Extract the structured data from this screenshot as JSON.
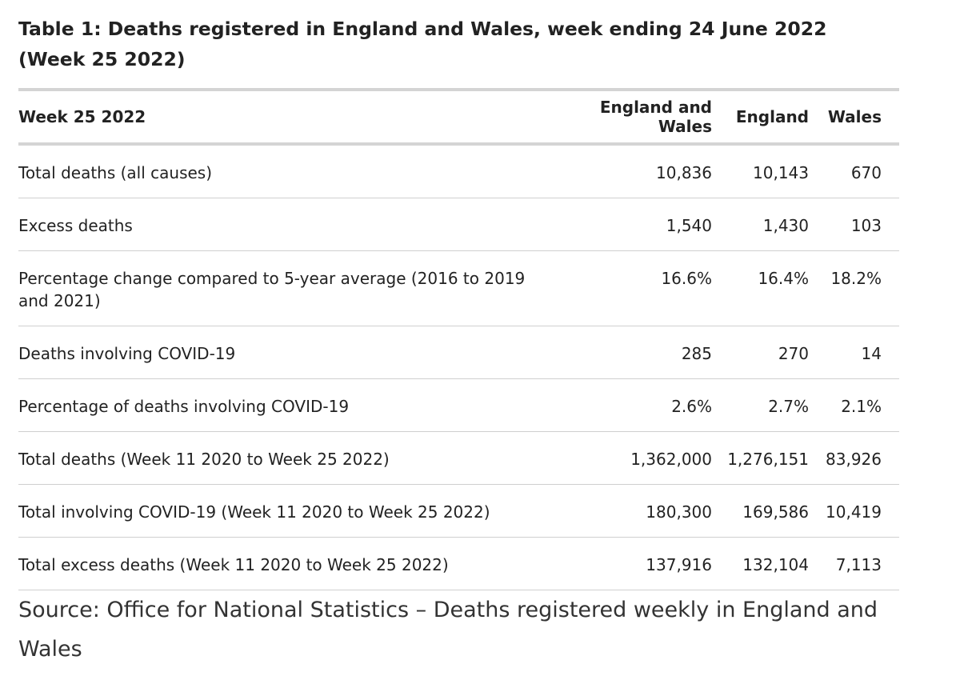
{
  "title": "Table 1: Deaths registered in England and Wales, week ending 24 June 2022 (Week 25 2022)",
  "table": {
    "headers": [
      "Week 25 2022",
      "England and Wales",
      "England",
      "Wales"
    ],
    "rows": [
      {
        "label": "Total deaths (all causes)",
        "england_and_wales": "10,836",
        "england": "10,143",
        "wales": "670"
      },
      {
        "label": "Excess deaths",
        "england_and_wales": "1,540",
        "england": "1,430",
        "wales": "103"
      },
      {
        "label": "Percentage change compared to 5-year average (2016 to 2019 and 2021)",
        "england_and_wales": "16.6%",
        "england": "16.4%",
        "wales": "18.2%"
      },
      {
        "label": "Deaths involving COVID-19",
        "england_and_wales": "285",
        "england": "270",
        "wales": "14"
      },
      {
        "label": "Percentage of deaths involving COVID-19",
        "england_and_wales": "2.6%",
        "england": "2.7%",
        "wales": "2.1%"
      },
      {
        "label": "Total deaths (Week 11 2020 to Week 25 2022)",
        "england_and_wales": "1,362,000",
        "england": "1,276,151",
        "wales": "83,926"
      },
      {
        "label": "Total involving COVID-19 (Week 11 2020 to Week 25 2022)",
        "england_and_wales": "180,300",
        "england": "169,586",
        "wales": "10,419"
      },
      {
        "label": "Total excess deaths (Week 11 2020 to Week 25 2022)",
        "england_and_wales": "137,916",
        "england": "132,104",
        "wales": "7,113"
      }
    ]
  },
  "source": "Source: Office for National Statistics – Deaths registered weekly in England and Wales",
  "colors": {
    "text": "#222222",
    "rule_heavy": "#d4d4d4",
    "rule_light": "#cfcfcf"
  }
}
